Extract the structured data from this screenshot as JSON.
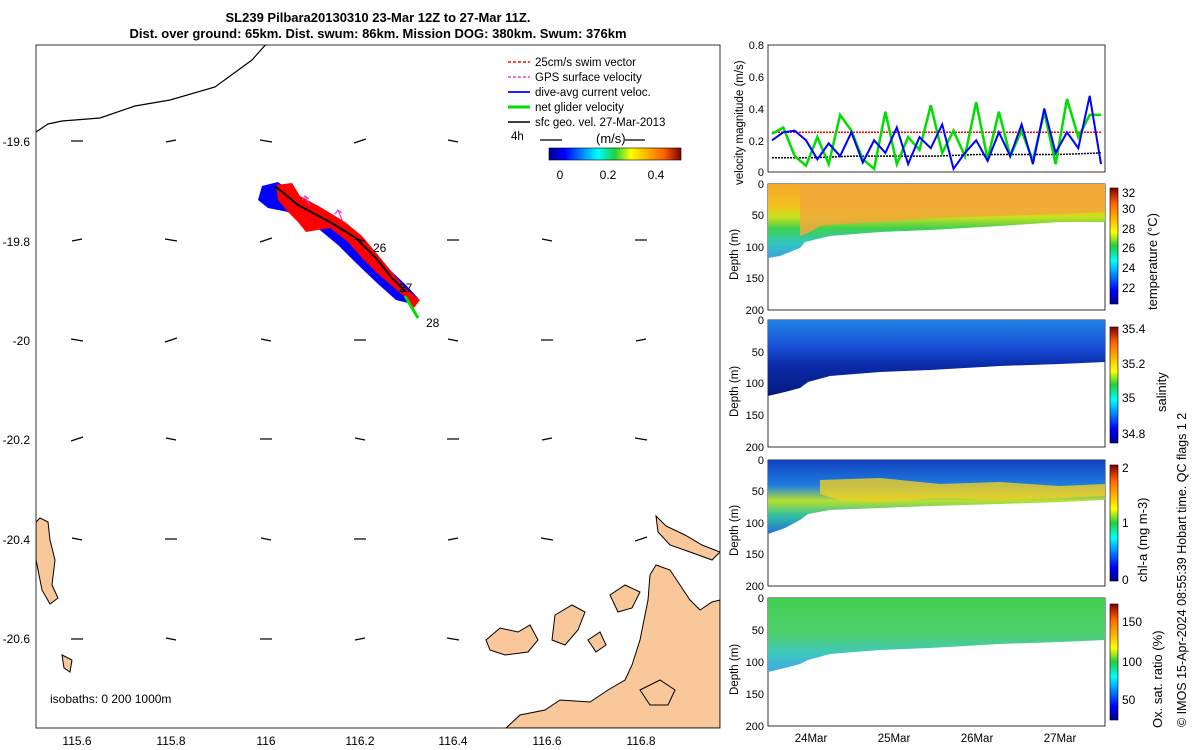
{
  "title": {
    "line1": "SL239 Pilbara20130310 23-Mar 12Z to 27-Mar 11Z.",
    "line2": "Dist. over ground: 65km. Dist. swum: 86km. Mission DOG: 380km. Swum: 376km"
  },
  "colors": {
    "land": "#f8c89a",
    "swim_vector": "#ff0000",
    "gps_velocity": "#e040e0",
    "dive_avg": "#0000ff",
    "net_glider": "#00dd00",
    "sfc_geo": "#000000"
  },
  "map": {
    "xticks": [
      "115.6",
      "115.8",
      "116",
      "116.2",
      "116.4",
      "116.6",
      "116.8"
    ],
    "yticks": [
      "-19.6",
      "-19.8",
      "-20",
      "-20.2",
      "-20.4",
      "-20.6"
    ],
    "legend": [
      {
        "label": "25cm/s swim vector",
        "color_key": "swim_vector",
        "style": "dashed"
      },
      {
        "label": "GPS surface velocity",
        "color_key": "gps_velocity",
        "style": "dashed"
      },
      {
        "label": "dive-avg current veloc.",
        "color_key": "dive_avg",
        "style": "solid"
      },
      {
        "label": "net glider velocity",
        "color_key": "net_glider",
        "style": "thick"
      },
      {
        "label": "sfc geo. vel. 27-Mar-2013",
        "color_key": "sfc_geo",
        "style": "solid"
      }
    ],
    "scale_label": "4h",
    "colorbar_label": "(m/s)",
    "colorbar_ticks": [
      "0",
      "0.2",
      "0.4"
    ],
    "day_labels": [
      "26",
      "27",
      "28"
    ],
    "isobaths_label": "isobaths: 0   200  1000m"
  },
  "chart_data": [
    {
      "type": "line",
      "ylabel": "velocity magnitude (m/s)",
      "ylim": [
        0,
        0.8
      ],
      "yticks": [
        "0",
        "0.2",
        "0.4",
        "0.6",
        "0.8"
      ],
      "series": [
        {
          "color_key": "swim_vector",
          "values": [
            0.25,
            0.25,
            0.25,
            0.25,
            0.25,
            0.25,
            0.25,
            0.25,
            0.25
          ]
        },
        {
          "color_key": "sfc_geo",
          "values": [
            0.09,
            0.09,
            0.1,
            0.1,
            0.1,
            0.11,
            0.11,
            0.11,
            0.12
          ]
        },
        {
          "color_key": "net_glider",
          "values": [
            0.24,
            0.28,
            0.1,
            0.04,
            0.22,
            0.05,
            0.36,
            0.26,
            0.08,
            0.02,
            0.38,
            0.05,
            0.22,
            0.14,
            0.42,
            0.12,
            0.26,
            0.1,
            0.44,
            0.08,
            0.38,
            0.1,
            0.26,
            0.07,
            0.38,
            0.05,
            0.46,
            0.22,
            0.36,
            0.36
          ]
        },
        {
          "color_key": "dive_avg",
          "values": [
            0.2,
            0.25,
            0.26,
            0.2,
            0.08,
            0.18,
            0.1,
            0.25,
            0.06,
            0.2,
            0.12,
            0.28,
            0.05,
            0.22,
            0.15,
            0.3,
            0.02,
            0.12,
            0.2,
            0.07,
            0.25,
            0.1,
            0.3,
            0.05,
            0.4,
            0.12,
            0.25,
            0.15,
            0.48,
            0.05
          ]
        }
      ]
    },
    {
      "type": "heatmap",
      "ylabel": "Depth (m)",
      "colorbar_label": "temperature (°C)",
      "clim": [
        21,
        32.5
      ],
      "colorbar_ticks": [
        "22",
        "24",
        "26",
        "28",
        "30",
        "32"
      ],
      "yticks": [
        "0",
        "50",
        "100",
        "150",
        "200"
      ],
      "ylim": [
        0,
        200
      ]
    },
    {
      "type": "heatmap",
      "ylabel": "Depth (m)",
      "colorbar_label": "salinity",
      "clim": [
        34.7,
        35.4
      ],
      "colorbar_ticks": [
        "34.8",
        "35",
        "35.2",
        "35.4"
      ],
      "yticks": [
        "0",
        "50",
        "100",
        "150",
        "200"
      ],
      "ylim": [
        0,
        200
      ]
    },
    {
      "type": "heatmap",
      "ylabel": "Depth (m)",
      "colorbar_label": "chl-a (mg m-3)",
      "clim": [
        0,
        2
      ],
      "colorbar_ticks": [
        "0",
        "1",
        "2"
      ],
      "yticks": [
        "0",
        "50",
        "100",
        "150",
        "200"
      ],
      "ylim": [
        0,
        200
      ]
    },
    {
      "type": "heatmap",
      "ylabel": "Depth (m)",
      "colorbar_label": "Ox. sat. ratio (%)",
      "clim": [
        25,
        175
      ],
      "colorbar_ticks": [
        "50",
        "100",
        "150"
      ],
      "yticks": [
        "0",
        "50",
        "100",
        "150",
        "200"
      ],
      "ylim": [
        0,
        200
      ]
    }
  ],
  "time_axis": {
    "ticks": [
      "24Mar",
      "25Mar",
      "26Mar",
      "27Mar"
    ]
  },
  "credit": "© IMOS 15-Apr-2024 08:55:39 Hobart time. QC flags 1  2"
}
